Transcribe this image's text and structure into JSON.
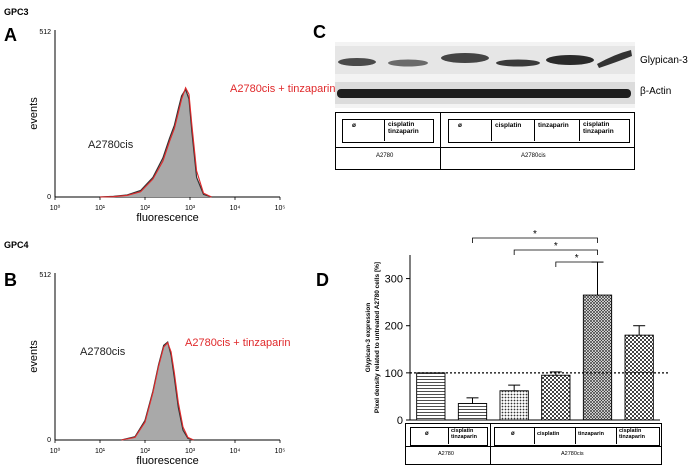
{
  "panels": {
    "A": {
      "letter": "A",
      "marker": "GPC3"
    },
    "B": {
      "letter": "B",
      "marker": "GPC4"
    },
    "C": {
      "letter": "C"
    },
    "D": {
      "letter": "D"
    }
  },
  "histogram": {
    "ylabel": "events",
    "xlabel": "fluorescence",
    "ymax_label": "512",
    "ymin_label": "0",
    "x_ticks": [
      "10⁰",
      "10¹",
      "10²",
      "10³",
      "10⁴",
      "10⁵"
    ],
    "control_label": "A2780cis",
    "treated_label": "A2780cis + tinzaparin",
    "control_color": "#333333",
    "treated_color": "#e0292b",
    "fill_color": "#a9a9a9"
  },
  "chart_data": [
    {
      "type": "area",
      "panel": "A",
      "title": "GPC3",
      "xlabel": "fluorescence",
      "ylabel": "events",
      "xscale": "log",
      "xlim": [
        1,
        100000
      ],
      "ylim": [
        0,
        512
      ],
      "series": [
        {
          "name": "A2780cis",
          "x": [
            10,
            20,
            40,
            80,
            150,
            250,
            350,
            450,
            550,
            650,
            800,
            950,
            1100,
            1400,
            2000,
            3000
          ],
          "y": [
            0,
            2,
            6,
            20,
            60,
            120,
            180,
            220,
            270,
            310,
            330,
            300,
            200,
            60,
            8,
            0
          ]
        },
        {
          "name": "A2780cis + tinzaparin",
          "x": [
            10,
            20,
            40,
            80,
            150,
            250,
            350,
            450,
            550,
            650,
            800,
            950,
            1100,
            1400,
            2000,
            3000
          ],
          "y": [
            0,
            1,
            5,
            16,
            55,
            110,
            170,
            210,
            258,
            300,
            335,
            315,
            220,
            80,
            12,
            0
          ]
        }
      ]
    },
    {
      "type": "area",
      "panel": "B",
      "title": "GPC4",
      "xlabel": "fluorescence",
      "ylabel": "events",
      "xscale": "log",
      "xlim": [
        1,
        100000
      ],
      "ylim": [
        0,
        512
      ],
      "series": [
        {
          "name": "A2780cis",
          "x": [
            30,
            60,
            100,
            150,
            200,
            260,
            320,
            380,
            450,
            550,
            700,
            900,
            1200
          ],
          "y": [
            0,
            10,
            60,
            150,
            230,
            290,
            300,
            260,
            190,
            100,
            30,
            5,
            0
          ]
        },
        {
          "name": "A2780cis + tinzaparin",
          "x": [
            30,
            60,
            100,
            150,
            200,
            260,
            320,
            380,
            450,
            550,
            700,
            900,
            1200
          ],
          "y": [
            0,
            8,
            55,
            145,
            225,
            285,
            298,
            270,
            205,
            115,
            40,
            8,
            0
          ]
        }
      ]
    },
    {
      "type": "bar",
      "panel": "D",
      "ylabel_line1": "Glypican-3 expression",
      "ylabel_line2": "Pixel density related to untreated A2780 cells [%]",
      "ylim": [
        0,
        350
      ],
      "yticks": [
        "0",
        "100",
        "200",
        "300"
      ],
      "reference_line": 100,
      "categories": [
        "ø",
        "cisplatin tinzaparin",
        "ø",
        "cisplatin",
        "tinzaparin",
        "cisplatin tinzaparin"
      ],
      "groups": [
        "A2780",
        "A2780cis"
      ],
      "values": [
        100,
        35,
        62,
        95,
        265,
        180
      ],
      "errors": [
        0,
        12,
        12,
        7,
        70,
        20
      ],
      "significance": [
        "*",
        "*",
        "*"
      ]
    }
  ],
  "blot": {
    "band_labels": [
      "Glypican-3",
      "β-Actin"
    ],
    "lanes": [
      "ø",
      "cisplatin tinzaparin",
      "ø",
      "cisplatin",
      "tinzaparin",
      "cisplatin tinzaparin"
    ],
    "groups": [
      "A2780",
      "A2780cis"
    ]
  },
  "barchart_table": {
    "cols": [
      "ø",
      "cisplatin tinzaparin",
      "ø",
      "cisplatin",
      "tinzaparin",
      "cisplatin tinzaparin"
    ],
    "groups": [
      "A2780",
      "A2780cis"
    ]
  }
}
